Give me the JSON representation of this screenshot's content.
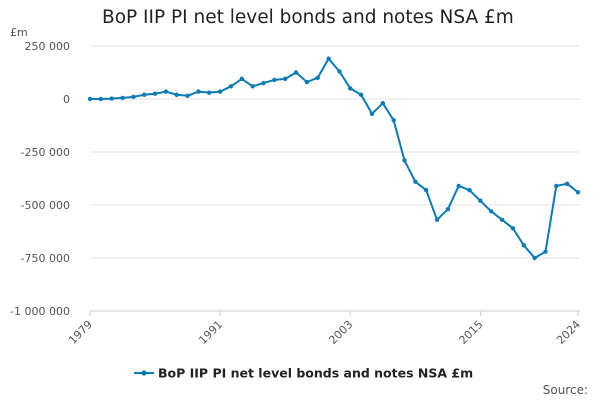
{
  "chart_data": {
    "type": "line",
    "title": "BoP IIP PI net level bonds and notes NSA £m",
    "unit_label": "£m",
    "source_label": "Source:",
    "ylim": [
      -1000000,
      250000
    ],
    "y_ticks": [
      250000,
      0,
      -250000,
      -500000,
      -750000,
      -1000000
    ],
    "y_tick_labels": [
      "250 000",
      "0",
      "-250 000",
      "-500 000",
      "-750 000",
      "-1 000 000"
    ],
    "xlim": [
      1979,
      2024
    ],
    "x_ticks": [
      1979,
      1991,
      2003,
      2015,
      2024
    ],
    "x_tick_labels": [
      "1979",
      "1991",
      "2003",
      "2015",
      "2024"
    ],
    "grid": true,
    "legend_position": "bottom",
    "color": "#0a7bb5",
    "series": [
      {
        "name": "BoP IIP PI net level bonds and notes NSA £m",
        "x": [
          1979,
          1980,
          1981,
          1982,
          1983,
          1984,
          1985,
          1986,
          1987,
          1988,
          1989,
          1990,
          1991,
          1992,
          1993,
          1994,
          1995,
          1996,
          1997,
          1998,
          1999,
          2000,
          2001,
          2002,
          2003,
          2004,
          2005,
          2006,
          2007,
          2008,
          2009,
          2010,
          2011,
          2012,
          2013,
          2014,
          2015,
          2016,
          2017,
          2018,
          2019,
          2020,
          2021,
          2022,
          2023,
          2024
        ],
        "values": [
          0,
          0,
          2000,
          5000,
          10000,
          20000,
          25000,
          35000,
          20000,
          15000,
          35000,
          30000,
          35000,
          60000,
          95000,
          60000,
          75000,
          90000,
          95000,
          125000,
          80000,
          100000,
          190000,
          130000,
          50000,
          20000,
          -70000,
          -20000,
          -100000,
          -290000,
          -390000,
          -430000,
          -570000,
          -520000,
          -410000,
          -430000,
          -480000,
          -530000,
          -570000,
          -610000,
          -690000,
          -750000,
          -720000,
          -410000,
          -400000,
          -440000
        ]
      }
    ]
  }
}
